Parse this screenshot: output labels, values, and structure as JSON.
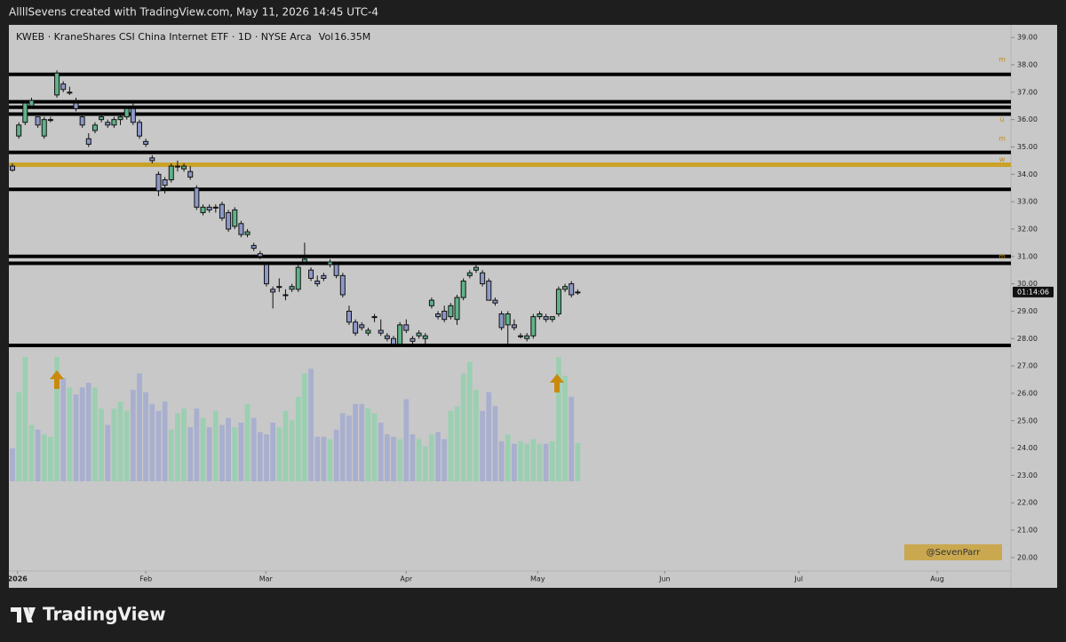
{
  "header": "AllllSevens created with TradingView.com, May 11, 2026 14:45 UTC-4",
  "brand": "TradingView",
  "chart_data": {
    "type": "candlestick",
    "title": "KWEB · KraneShares CSI China Internet ETF · 1D · NYSE Arca",
    "volume_legend": {
      "label": "Vol",
      "value_label": "16.35M"
    },
    "price_tag": "01:14:06",
    "watermark": "@SevenParr",
    "up_color": "#5fb38a",
    "down_color": "#8e99c8",
    "volume_up_color": "#9ccfb2",
    "volume_down_color": "#a9afce",
    "candles": [
      [
        34.3,
        34.4,
        34.1,
        34.15
      ],
      [
        35.4,
        35.9,
        35.3,
        35.8
      ],
      [
        35.9,
        36.7,
        35.8,
        36.6
      ],
      [
        36.5,
        36.8,
        36.4,
        36.7
      ],
      [
        36.1,
        36.1,
        35.7,
        35.8
      ],
      [
        35.4,
        36.1,
        35.3,
        36.0
      ],
      [
        36.0,
        36.1,
        35.9,
        36.0
      ],
      [
        36.9,
        37.8,
        36.8,
        37.7
      ],
      [
        37.3,
        37.4,
        37.0,
        37.1
      ],
      [
        37.0,
        37.2,
        36.9,
        37.0
      ],
      [
        36.6,
        36.8,
        36.3,
        36.4
      ],
      [
        36.1,
        36.2,
        35.7,
        35.8
      ],
      [
        35.3,
        35.5,
        35.0,
        35.1
      ],
      [
        35.6,
        35.9,
        35.5,
        35.8
      ],
      [
        36.0,
        36.2,
        35.9,
        36.1
      ],
      [
        35.9,
        36.0,
        35.7,
        35.8
      ],
      [
        35.8,
        36.1,
        35.7,
        36.0
      ],
      [
        36.0,
        36.2,
        35.8,
        36.1
      ],
      [
        36.1,
        36.5,
        36.0,
        36.4
      ],
      [
        36.4,
        36.6,
        35.8,
        35.9
      ],
      [
        35.9,
        36.0,
        35.3,
        35.4
      ],
      [
        35.2,
        35.3,
        35.0,
        35.1
      ],
      [
        34.6,
        34.7,
        34.4,
        34.5
      ],
      [
        34.0,
        34.1,
        33.2,
        33.4
      ],
      [
        33.8,
        33.9,
        33.3,
        33.6
      ],
      [
        33.8,
        34.4,
        33.7,
        34.3
      ],
      [
        34.3,
        34.5,
        34.1,
        34.3
      ],
      [
        34.2,
        34.4,
        34.1,
        34.3
      ],
      [
        34.1,
        34.3,
        33.8,
        33.9
      ],
      [
        33.5,
        33.6,
        32.7,
        32.8
      ],
      [
        32.6,
        32.9,
        32.5,
        32.8
      ],
      [
        32.8,
        32.9,
        32.6,
        32.7
      ],
      [
        32.8,
        32.9,
        32.6,
        32.8
      ],
      [
        32.9,
        33.0,
        32.3,
        32.4
      ],
      [
        32.6,
        32.7,
        31.9,
        32.0
      ],
      [
        32.1,
        32.8,
        32.0,
        32.7
      ],
      [
        32.2,
        32.3,
        31.7,
        31.8
      ],
      [
        31.8,
        32.0,
        31.7,
        31.9
      ],
      [
        31.4,
        31.5,
        31.2,
        31.3
      ],
      [
        31.1,
        31.2,
        30.9,
        31.0
      ],
      [
        30.7,
        30.8,
        29.9,
        30.0
      ],
      [
        29.8,
        29.9,
        29.1,
        29.7
      ],
      [
        29.9,
        30.2,
        29.7,
        29.9
      ],
      [
        29.6,
        29.8,
        29.4,
        29.6
      ],
      [
        29.8,
        30.0,
        29.7,
        29.9
      ],
      [
        29.8,
        30.7,
        29.7,
        30.6
      ],
      [
        30.8,
        31.5,
        30.7,
        30.9
      ],
      [
        30.5,
        30.6,
        30.1,
        30.2
      ],
      [
        30.1,
        30.3,
        29.9,
        30.0
      ],
      [
        30.3,
        30.4,
        30.1,
        30.2
      ],
      [
        30.7,
        30.9,
        30.6,
        30.8
      ],
      [
        30.7,
        30.8,
        30.2,
        30.3
      ],
      [
        30.3,
        30.4,
        29.5,
        29.6
      ],
      [
        29.0,
        29.2,
        28.5,
        28.6
      ],
      [
        28.6,
        28.7,
        28.1,
        28.2
      ],
      [
        28.5,
        28.6,
        28.3,
        28.4
      ],
      [
        28.2,
        28.4,
        28.1,
        28.3
      ],
      [
        28.8,
        28.9,
        28.6,
        28.8
      ],
      [
        28.3,
        28.7,
        28.1,
        28.2
      ],
      [
        28.1,
        28.2,
        27.9,
        28.0
      ],
      [
        28.0,
        28.1,
        27.7,
        27.8
      ],
      [
        27.8,
        28.6,
        27.7,
        28.5
      ],
      [
        28.5,
        28.7,
        28.2,
        28.3
      ],
      [
        28.0,
        28.1,
        27.8,
        27.9
      ],
      [
        28.1,
        28.3,
        28.0,
        28.2
      ],
      [
        28.0,
        28.2,
        27.8,
        28.1
      ],
      [
        29.2,
        29.5,
        29.1,
        29.4
      ],
      [
        28.9,
        29.0,
        28.7,
        28.8
      ],
      [
        29.0,
        29.2,
        28.6,
        28.7
      ],
      [
        28.8,
        29.3,
        28.7,
        29.2
      ],
      [
        28.7,
        29.6,
        28.5,
        29.5
      ],
      [
        29.5,
        30.2,
        29.4,
        30.1
      ],
      [
        30.3,
        30.5,
        30.2,
        30.4
      ],
      [
        30.5,
        30.8,
        30.4,
        30.6
      ],
      [
        30.4,
        30.5,
        29.9,
        30.0
      ],
      [
        30.1,
        30.2,
        29.4,
        29.4
      ],
      [
        29.4,
        29.5,
        29.2,
        29.3
      ],
      [
        28.9,
        29.0,
        28.3,
        28.4
      ],
      [
        28.5,
        29.0,
        27.8,
        28.9
      ],
      [
        28.5,
        28.7,
        28.3,
        28.4
      ],
      [
        28.1,
        28.2,
        28.0,
        28.1
      ],
      [
        28.0,
        28.2,
        27.9,
        28.1
      ],
      [
        28.1,
        28.9,
        28.0,
        28.8
      ],
      [
        28.8,
        29.0,
        28.7,
        28.9
      ],
      [
        28.8,
        28.9,
        28.6,
        28.7
      ],
      [
        28.7,
        28.8,
        28.6,
        28.8
      ],
      [
        28.9,
        29.9,
        28.8,
        29.8
      ],
      [
        29.8,
        30.0,
        29.7,
        29.9
      ],
      [
        30.0,
        30.1,
        29.5,
        29.6
      ],
      [
        29.7,
        29.8,
        29.6,
        29.7
      ]
    ],
    "volume": [
      14,
      38,
      53,
      24,
      22,
      20,
      19,
      53,
      44,
      40,
      37,
      40,
      42,
      40,
      31,
      24,
      31,
      34,
      30,
      39,
      46,
      38,
      33,
      30,
      34,
      22,
      29,
      31,
      23,
      31,
      27,
      23,
      30,
      24,
      27,
      23,
      25,
      33,
      27,
      21,
      20,
      25,
      23,
      30,
      26,
      36,
      46,
      48,
      19,
      19,
      18,
      22,
      29,
      28,
      33,
      33,
      31,
      29,
      25,
      20,
      19,
      18,
      35,
      20,
      18,
      15,
      20,
      21,
      18,
      30,
      32,
      46,
      51,
      39,
      30,
      38,
      32,
      17,
      20,
      16,
      17,
      16,
      18,
      16,
      16,
      17,
      53,
      45,
      36,
      16.35
    ],
    "levels": [
      {
        "value": 37.65,
        "color": "#000000"
      },
      {
        "value": 36.65,
        "color": "#000000"
      },
      {
        "value": 36.45,
        "color": "#000000"
      },
      {
        "value": 36.2,
        "color": "#000000"
      },
      {
        "value": 34.8,
        "color": "#000000"
      },
      {
        "value": 34.35,
        "color": "#c9a227"
      },
      {
        "value": 33.45,
        "color": "#000000"
      },
      {
        "value": 31.0,
        "color": "#000000"
      },
      {
        "value": 30.75,
        "color": "#000000"
      },
      {
        "value": 27.75,
        "color": "#000000"
      }
    ],
    "level_tags": [
      {
        "value": 38.2,
        "label": "m"
      },
      {
        "value": 36.0,
        "label": "u"
      },
      {
        "value": 35.3,
        "label": "m"
      },
      {
        "value": 34.55,
        "label": "w"
      },
      {
        "value": 31.0,
        "label": "m"
      }
    ],
    "xlim": [
      -0.56,
      157.2
    ],
    "xticks": [
      {
        "value": 0.8,
        "label": "2026"
      },
      {
        "value": 21.0,
        "label": "Feb"
      },
      {
        "value": 39.9,
        "label": "Mar"
      },
      {
        "value": 62.0,
        "label": "Apr"
      },
      {
        "value": 82.7,
        "label": "May"
      },
      {
        "value": 102.7,
        "label": "Jun"
      },
      {
        "value": 123.8,
        "label": "Jul"
      },
      {
        "value": 145.6,
        "label": "Aug"
      }
    ],
    "ylim": [
      19.51,
      39.46
    ],
    "yticks": [
      {
        "value": 20,
        "label": "20.00"
      },
      {
        "value": 21,
        "label": "21.00"
      },
      {
        "value": 22,
        "label": "22.00"
      },
      {
        "value": 23,
        "label": "23.00"
      },
      {
        "value": 24,
        "label": "24.00"
      },
      {
        "value": 25,
        "label": "25.00"
      },
      {
        "value": 26,
        "label": "26.00"
      },
      {
        "value": 27,
        "label": "27.00"
      },
      {
        "value": 28,
        "label": "28.00"
      },
      {
        "value": 29,
        "label": "29.00"
      },
      {
        "value": 30,
        "label": "30.00"
      },
      {
        "value": 31,
        "label": "31.00"
      },
      {
        "value": 32,
        "label": "32.00"
      },
      {
        "value": 33,
        "label": "33.00"
      },
      {
        "value": 34,
        "label": "34.00"
      },
      {
        "value": 35,
        "label": "35.00"
      },
      {
        "value": 36,
        "label": "36.00"
      },
      {
        "value": 37,
        "label": "37.00"
      },
      {
        "value": 38,
        "label": "38.00"
      },
      {
        "value": 39,
        "label": "39.00"
      }
    ]
  }
}
